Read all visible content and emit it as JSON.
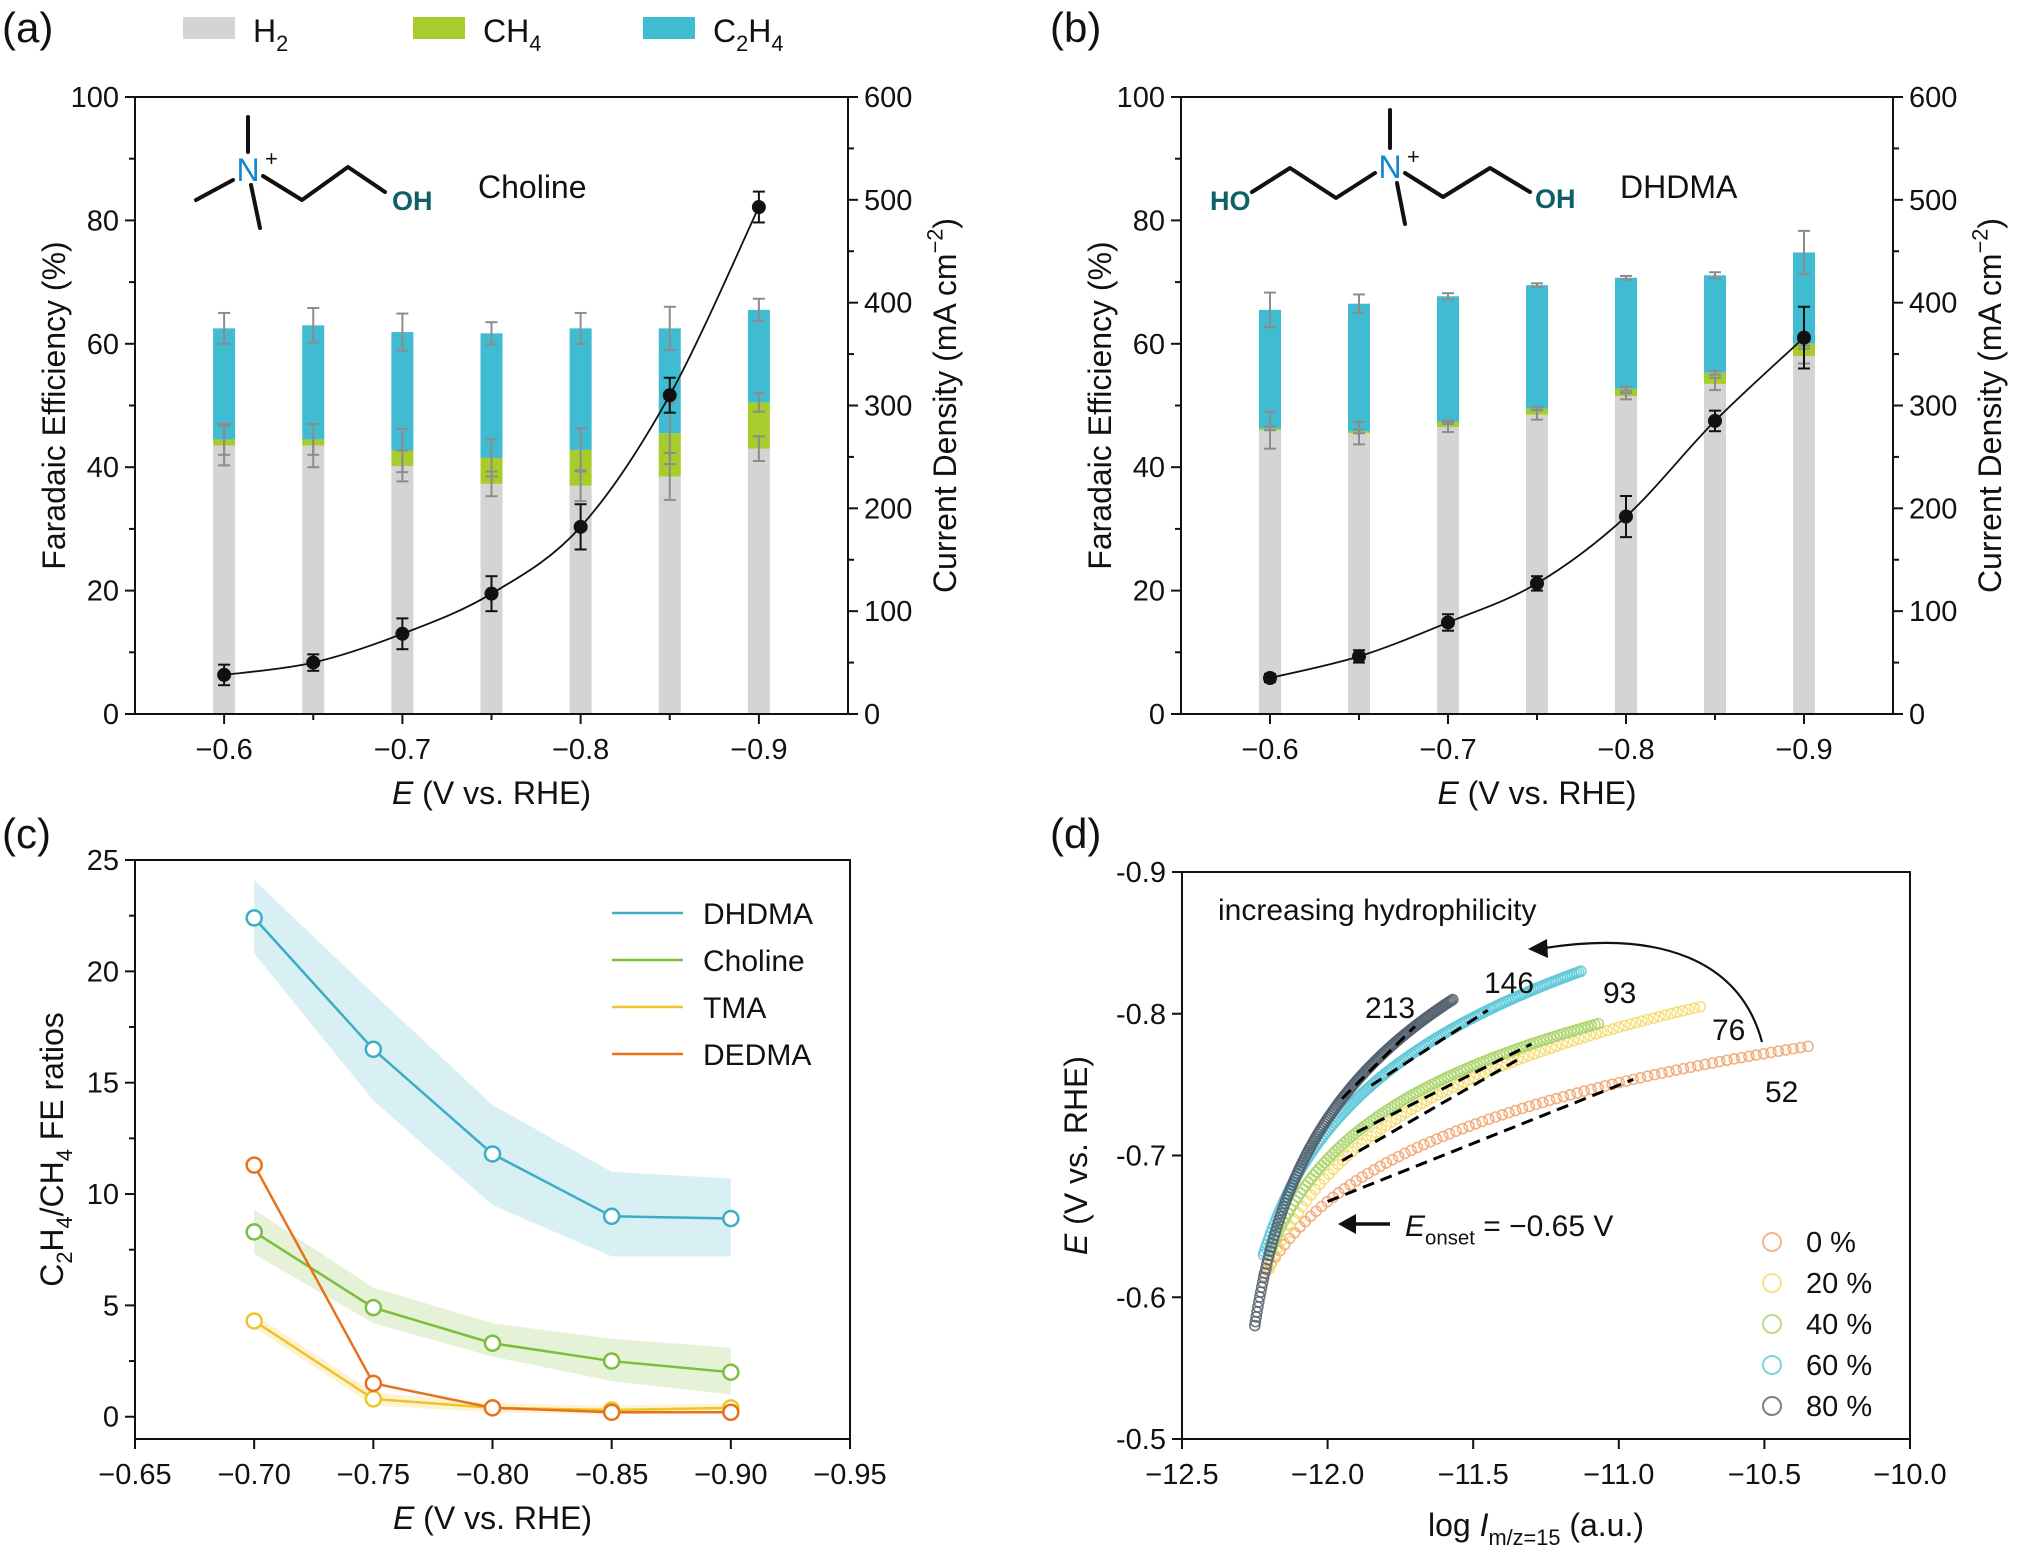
{
  "colors": {
    "h2": "#d4d4d4",
    "ch4": "#a8cc2c",
    "c2h4": "#3fbbd2",
    "black": "#111111",
    "err": "#8c8c8c",
    "dhdma": "#3aaec4",
    "choline": "#7dbd3c",
    "tma": "#efc428",
    "dedma": "#e8711c",
    "p0": "#f1a36e",
    "p20": "#f5db68",
    "p40": "#a9d46a",
    "p60": "#5ec8d8",
    "p80": "#55616e",
    "molN": "#1187cc",
    "molOH": "#115f66"
  },
  "legend_top": [
    {
      "key": "h2",
      "label": "H",
      "sub": "2",
      "after": ""
    },
    {
      "key": "ch4",
      "label": "CH",
      "sub": "4",
      "after": ""
    },
    {
      "key": "c2h4",
      "label": "C",
      "sub": "2",
      "mid": "H",
      "sub2": "4"
    }
  ],
  "chart_data": [
    {
      "panel": "(a)",
      "type": "bar",
      "molecule_label": "Choline",
      "molecule_text": {
        "n": "N",
        "plus": "+",
        "oh": "OH"
      },
      "xlabel_italic": "E",
      "xlabel_rest": " (V vs. RHE)",
      "ylabel": "Faradaic Efficiency (%)",
      "y2label": "Current Density (mA cm",
      "y2label_sup": "−2",
      "y2label_end": ")",
      "x_ticks": [
        "−0.6",
        "−0.7",
        "−0.8",
        "−0.9"
      ],
      "x_tick_values": [
        -0.6,
        -0.7,
        -0.8,
        -0.9
      ],
      "y_ticks": [
        "0",
        "20",
        "40",
        "60",
        "80",
        "100"
      ],
      "y2_ticks": [
        "0",
        "100",
        "200",
        "300",
        "400",
        "500",
        "600"
      ],
      "xlim": [
        -0.55,
        -0.95
      ],
      "ylim": [
        0,
        100
      ],
      "y2lim": [
        0,
        600
      ],
      "x": [
        -0.6,
        -0.65,
        -0.7,
        -0.75,
        -0.8,
        -0.85,
        -0.9
      ],
      "h2": [
        43.5,
        43.5,
        40.2,
        37.3,
        37.0,
        38.5,
        43.0
      ],
      "h2_err": [
        3.2,
        3.5,
        2.5,
        2.0,
        2.5,
        3.8,
        2.0
      ],
      "ch4": [
        1.0,
        1.0,
        2.5,
        4.2,
        5.8,
        7.0,
        7.5
      ],
      "ch4_err": [
        2.5,
        2.5,
        3.5,
        3.0,
        3.5,
        5.0,
        1.5
      ],
      "c2h4": [
        18.0,
        18.5,
        19.2,
        20.2,
        19.7,
        17.0,
        15.0
      ],
      "total_err": [
        2.5,
        2.8,
        3.0,
        1.8,
        2.5,
        3.5,
        1.8
      ],
      "current": [
        38,
        50,
        78,
        117,
        182,
        310,
        493
      ],
      "current_err": [
        10,
        8,
        15,
        17,
        22,
        17,
        15
      ]
    },
    {
      "panel": "(b)",
      "type": "bar",
      "molecule_label": "DHDMA",
      "molecule_text": {
        "n": "N",
        "plus": "+",
        "ho": "HO",
        "oh": "OH"
      },
      "xlabel_italic": "E",
      "xlabel_rest": " (V vs. RHE)",
      "ylabel": "Faradaic Efficiency (%)",
      "y2label": "Current Density (mA cm",
      "y2label_sup": "−2",
      "y2label_end": ")",
      "x_ticks": [
        "−0.6",
        "−0.7",
        "−0.8",
        "−0.9"
      ],
      "x_tick_values": [
        -0.6,
        -0.7,
        -0.8,
        -0.9
      ],
      "y_ticks": [
        "0",
        "20",
        "40",
        "60",
        "80",
        "100"
      ],
      "y2_ticks": [
        "0",
        "100",
        "200",
        "300",
        "400",
        "500",
        "600"
      ],
      "xlim": [
        -0.55,
        -0.95
      ],
      "ylim": [
        0,
        100
      ],
      "y2lim": [
        0,
        600
      ],
      "x": [
        -0.6,
        -0.65,
        -0.7,
        -0.75,
        -0.8,
        -0.85,
        -0.9
      ],
      "h2": [
        46.0,
        45.5,
        46.5,
        48.5,
        51.5,
        53.5,
        58.0
      ],
      "h2_err": [
        3.0,
        1.8,
        0.8,
        0.8,
        0.5,
        1.0,
        1.2
      ],
      "ch4": [
        0.3,
        0.3,
        0.8,
        1.0,
        1.2,
        1.8,
        2.0
      ],
      "ch4_err": [
        0.3,
        0.3,
        0.3,
        0.3,
        0.3,
        0.3,
        0.3
      ],
      "c2h4": [
        19.2,
        20.7,
        20.4,
        20.0,
        18.0,
        15.8,
        14.8
      ],
      "total_err": [
        2.8,
        1.5,
        0.5,
        0.3,
        0.3,
        0.5,
        3.5
      ],
      "current": [
        35,
        56,
        89,
        127,
        192,
        285,
        366
      ],
      "current_err": [
        4,
        6,
        8,
        7,
        20,
        10,
        30
      ]
    },
    {
      "panel": "(c)",
      "type": "line",
      "xlabel_italic": "E",
      "xlabel_rest": " (V vs. RHE)",
      "ylabel_parts": [
        "C",
        "2",
        "H",
        "4",
        "/CH",
        "4",
        " FE ratios"
      ],
      "x_ticks": [
        "−0.65",
        "−0.70",
        "−0.75",
        "−0.80",
        "−0.85",
        "−0.90",
        "−0.95"
      ],
      "x_tick_values": [
        -0.65,
        -0.7,
        -0.75,
        -0.8,
        -0.85,
        -0.9,
        -0.95
      ],
      "y_ticks": [
        "0",
        "5",
        "10",
        "15",
        "20",
        "25"
      ],
      "y_tick_values": [
        0,
        5,
        10,
        15,
        20,
        25
      ],
      "xlim": [
        -0.65,
        -0.95
      ],
      "ylim": [
        -1,
        25
      ],
      "x": [
        -0.7,
        -0.75,
        -0.8,
        -0.85,
        -0.9
      ],
      "series": [
        {
          "name": "DHDMA",
          "key": "dhdma",
          "values": [
            22.4,
            16.5,
            11.8,
            9.0,
            8.9
          ],
          "lower": [
            20.8,
            14.2,
            9.5,
            7.2,
            7.2
          ],
          "upper": [
            24.1,
            19.0,
            14.0,
            11.0,
            10.7
          ]
        },
        {
          "name": "Choline",
          "key": "choline",
          "values": [
            8.3,
            4.9,
            3.3,
            2.5,
            2.0
          ],
          "lower": [
            7.3,
            4.2,
            2.7,
            1.6,
            1.0
          ],
          "upper": [
            9.3,
            5.8,
            4.2,
            3.5,
            3.1
          ]
        },
        {
          "name": "TMA",
          "key": "tma",
          "values": [
            4.3,
            0.8,
            0.4,
            0.3,
            0.4
          ],
          "lower": [
            4.0,
            0.5,
            0.2,
            0.1,
            0.2
          ],
          "upper": [
            4.6,
            1.1,
            0.6,
            0.5,
            0.6
          ]
        },
        {
          "name": "DEDMA",
          "key": "dedma",
          "values": [
            11.3,
            1.5,
            0.4,
            0.2,
            0.2
          ],
          "lower": [
            11.3,
            1.5,
            0.4,
            0.2,
            0.2
          ],
          "upper": [
            11.3,
            1.5,
            0.4,
            0.2,
            0.2
          ]
        }
      ]
    },
    {
      "panel": "(d)",
      "type": "scatter",
      "xlabel": "log ",
      "xlabel_italic": "I",
      "xlabel_sub": "m/z=15",
      "xlabel_end": " (a.u.)",
      "ylabel_italic": "E",
      "ylabel_rest": " (V vs. RHE)",
      "x_ticks": [
        "−12.5",
        "−12.0",
        "−11.5",
        "−11.0",
        "−10.5",
        "−10.0"
      ],
      "x_tick_values": [
        -12.5,
        -12.0,
        -11.5,
        -11.0,
        -10.5,
        -10.0
      ],
      "y_ticks": [
        "-0.5",
        "-0.6",
        "-0.7",
        "-0.8",
        "-0.9"
      ],
      "y_tick_values": [
        -0.5,
        -0.6,
        -0.7,
        -0.8,
        -0.9
      ],
      "xlim": [
        -12.5,
        -10.0
      ],
      "ylim": [
        -0.5,
        -0.9
      ],
      "annotation_top": "increasing hydrophilicity",
      "onset_italic": "E",
      "onset_sub": "onset",
      "onset_rest": " = −0.65 V",
      "series": [
        {
          "name": "0 %",
          "key": "p0",
          "slope_label": "52",
          "x_start": -12.22,
          "x_end": -10.35,
          "y_start": -0.615,
          "y_end": -0.777,
          "n": 85,
          "k": 10,
          "fit": [
            [
              -12.0,
              -10.95
            ]
          ]
        },
        {
          "name": "20 %",
          "key": "p20",
          "slope_label": "76",
          "x_start": -12.2,
          "x_end": -10.72,
          "y_start": -0.62,
          "y_end": -0.805,
          "n": 85,
          "k": 10,
          "fit": [
            [
              -11.95,
              -11.35
            ]
          ]
        },
        {
          "name": "40 %",
          "key": "p40",
          "slope_label": "93",
          "x_start": -12.2,
          "x_end": -11.07,
          "y_start": -0.63,
          "y_end": -0.793,
          "n": 110,
          "k": 9,
          "fit": [
            [
              -11.9,
              -11.3
            ]
          ]
        },
        {
          "name": "60 %",
          "key": "p60",
          "slope_label": "146",
          "x_start": -12.22,
          "x_end": -11.13,
          "y_start": -0.63,
          "y_end": -0.83,
          "n": 160,
          "k": 8,
          "fit": [
            [
              -11.85,
              -11.45
            ]
          ]
        },
        {
          "name": "80 %",
          "key": "p80",
          "slope_label": "213",
          "x_start": -12.25,
          "x_end": -11.57,
          "y_start": -0.58,
          "y_end": -0.81,
          "n": 150,
          "k": 9,
          "fit": [
            [
              -11.95,
              -11.7
            ]
          ]
        }
      ]
    }
  ]
}
